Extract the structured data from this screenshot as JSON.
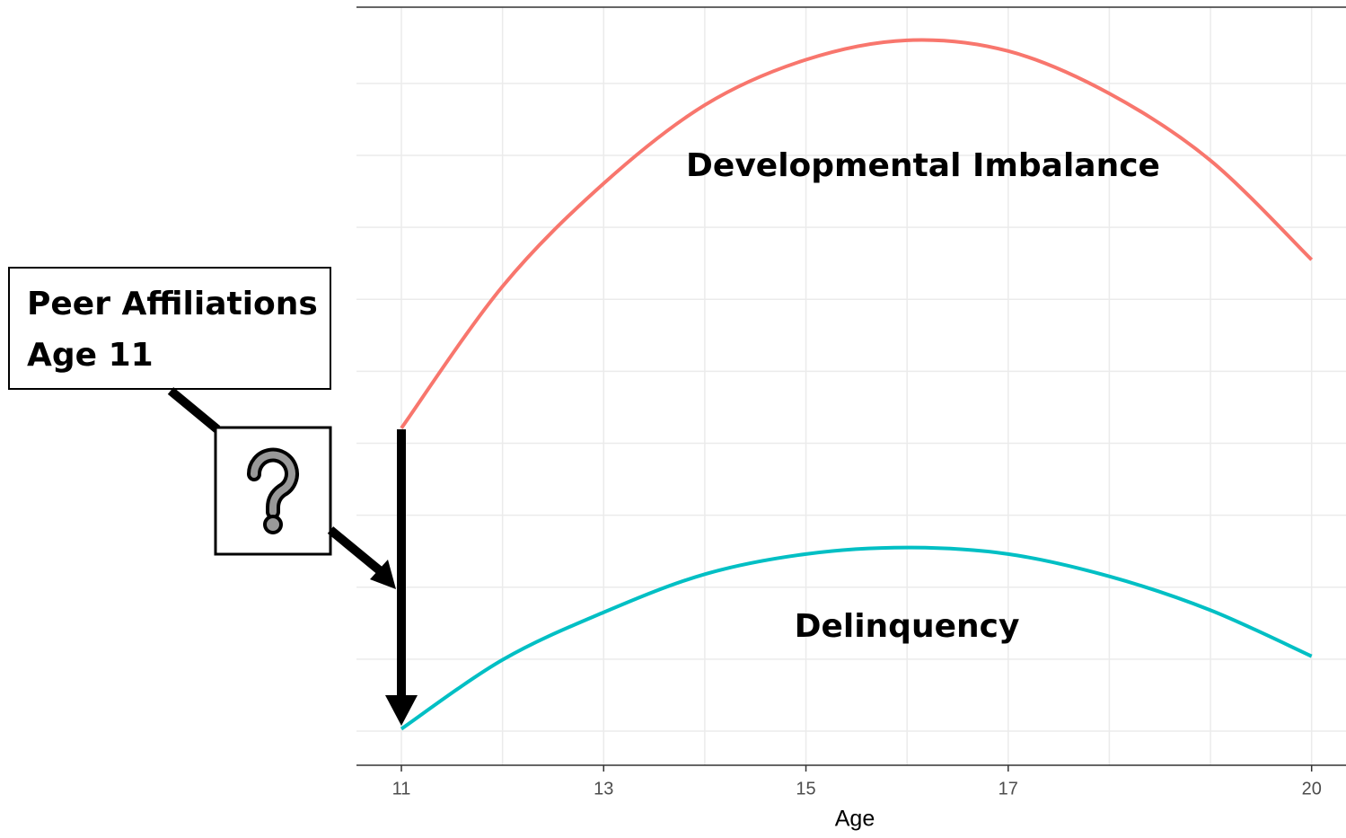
{
  "chart_data": {
    "type": "line",
    "x_label": "Age",
    "x": [
      11,
      12,
      13,
      14,
      15,
      16,
      17,
      18,
      19,
      20
    ],
    "series": [
      {
        "name": "Developmental Imbalance",
        "color": "#f8766d",
        "values": [
          5.21,
          7.18,
          8.61,
          9.7,
          10.33,
          10.6,
          10.45,
          9.86,
          8.93,
          7.55
        ]
      },
      {
        "name": "Delinquency",
        "color": "#00bfc4",
        "values": [
          1.03,
          1.99,
          2.65,
          3.18,
          3.46,
          3.55,
          3.46,
          3.15,
          2.68,
          2.04
        ]
      }
    ],
    "xlim": [
      10.556,
      20.34
    ],
    "xticks": [
      11,
      13,
      15,
      17,
      20
    ],
    "xgrid": [
      11,
      12,
      13,
      14,
      15,
      16,
      17,
      18,
      19,
      20
    ],
    "ylim": [
      0.525,
      11.06
    ],
    "ygrid": [
      1,
      2,
      3,
      4,
      5,
      6,
      7,
      8,
      9,
      10
    ],
    "grid": true,
    "annotation": [
      "Peer Affiliations",
      "Age 11"
    ]
  }
}
